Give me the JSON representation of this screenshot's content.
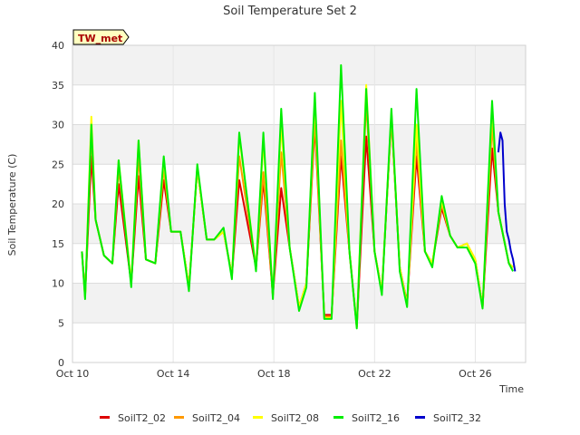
{
  "chart_data": {
    "type": "line",
    "title": "Soil Temperature Set 2",
    "xlabel": "Time",
    "ylabel": "Soil Temperature (C)",
    "annotation": "TW_met",
    "xlim": [
      "2023-10-10",
      "2023-10-28"
    ],
    "ylim": [
      0,
      40
    ],
    "yticks": [
      0,
      5,
      10,
      15,
      20,
      25,
      30,
      35,
      40
    ],
    "xticks": [
      {
        "date": "2023-10-10",
        "label": "Oct 10"
      },
      {
        "date": "2023-10-14",
        "label": "Oct 14"
      },
      {
        "date": "2023-10-18",
        "label": "Oct 18"
      },
      {
        "date": "2023-10-22",
        "label": "Oct 22"
      },
      {
        "date": "2023-10-26",
        "label": "Oct 26"
      }
    ],
    "grid": true,
    "legend_position": "bottom",
    "series": [
      {
        "name": "SoilT2_02",
        "color": "#dd0000",
        "x": [
          "2023-10-10T09:00",
          "2023-10-10T12:00",
          "2023-10-10T18:00",
          "2023-10-10T22:00",
          "2023-10-11T06:00",
          "2023-10-11T14:00",
          "2023-10-11T20:00",
          "2023-10-12T08:00",
          "2023-10-12T15:00",
          "2023-10-12T22:00",
          "2023-10-13T07:00",
          "2023-10-13T15:00",
          "2023-10-13T22:00",
          "2023-10-14T07:00",
          "2023-10-14T15:00",
          "2023-10-14T23:00",
          "2023-10-15T08:00",
          "2023-10-15T15:00",
          "2023-10-16T00:00",
          "2023-10-16T08:00",
          "2023-10-16T15:00",
          "2023-10-17T07:00",
          "2023-10-17T14:00",
          "2023-10-17T23:00",
          "2023-10-18T07:00",
          "2023-10-18T15:00",
          "2023-10-19T00:00",
          "2023-10-19T07:00",
          "2023-10-19T15:00",
          "2023-10-20T00:00",
          "2023-10-20T07:00",
          "2023-10-20T16:00",
          "2023-10-21T00:00",
          "2023-10-21T07:00",
          "2023-10-21T16:00",
          "2023-10-22T00:00",
          "2023-10-22T07:00",
          "2023-10-22T16:00",
          "2023-10-23T00:00",
          "2023-10-23T07:00",
          "2023-10-23T16:00",
          "2023-10-24T00:00",
          "2023-10-24T07:00",
          "2023-10-24T16:00",
          "2023-10-25T00:00",
          "2023-10-25T07:00",
          "2023-10-25T16:00",
          "2023-10-26T00:00",
          "2023-10-26T07:00",
          "2023-10-26T16:00",
          "2023-10-26T22:00",
          "2023-10-27T08:00",
          "2023-10-27T12:00"
        ],
        "y": [
          14,
          8.5,
          26,
          18,
          13.5,
          12.5,
          22.5,
          10,
          23.5,
          13,
          12.5,
          23,
          16.5,
          16.5,
          9.5,
          24.5,
          15.5,
          15.5,
          16.5,
          11,
          23,
          12,
          23,
          8.5,
          22,
          14.5,
          7,
          10,
          30,
          6,
          6,
          26,
          14,
          4.5,
          28.5,
          14,
          9,
          31,
          12,
          7.5,
          26,
          14,
          12.5,
          19.5,
          16,
          14.5,
          15,
          13,
          7,
          27,
          19,
          12.5,
          12
        ]
      },
      {
        "name": "SoilT2_04",
        "color": "#ff9900",
        "x": [
          "2023-10-10T09:00",
          "2023-10-10T12:00",
          "2023-10-10T18:00",
          "2023-10-10T22:00",
          "2023-10-11T06:00",
          "2023-10-11T14:00",
          "2023-10-11T20:00",
          "2023-10-12T08:00",
          "2023-10-12T15:00",
          "2023-10-12T22:00",
          "2023-10-13T07:00",
          "2023-10-13T15:00",
          "2023-10-13T22:00",
          "2023-10-14T07:00",
          "2023-10-14T15:00",
          "2023-10-14T23:00",
          "2023-10-15T08:00",
          "2023-10-15T15:00",
          "2023-10-16T00:00",
          "2023-10-16T08:00",
          "2023-10-16T15:00",
          "2023-10-17T07:00",
          "2023-10-17T14:00",
          "2023-10-17T23:00",
          "2023-10-18T07:00",
          "2023-10-18T15:00",
          "2023-10-19T00:00",
          "2023-10-19T07:00",
          "2023-10-19T15:00",
          "2023-10-20T00:00",
          "2023-10-20T07:00",
          "2023-10-20T16:00",
          "2023-10-21T00:00",
          "2023-10-21T07:00",
          "2023-10-21T16:00",
          "2023-10-22T00:00",
          "2023-10-22T07:00",
          "2023-10-22T16:00",
          "2023-10-23T00:00",
          "2023-10-23T07:00",
          "2023-10-23T16:00",
          "2023-10-24T00:00",
          "2023-10-24T07:00",
          "2023-10-24T16:00",
          "2023-10-25T00:00",
          "2023-10-25T07:00",
          "2023-10-25T16:00",
          "2023-10-26T00:00",
          "2023-10-26T07:00",
          "2023-10-26T16:00",
          "2023-10-26T22:00",
          "2023-10-27T08:00",
          "2023-10-27T12:00"
        ],
        "y": [
          14,
          8.3,
          29,
          18,
          13.5,
          12.5,
          24.5,
          10,
          26,
          13,
          12.5,
          24.5,
          16.5,
          16.5,
          9.5,
          24.5,
          15.5,
          15.5,
          16.5,
          11,
          26,
          12,
          24,
          8.5,
          26.5,
          14.5,
          7,
          10,
          31,
          5.8,
          5.8,
          28,
          14,
          4.5,
          33,
          14,
          9,
          31,
          12,
          7.3,
          28,
          14,
          12.5,
          20,
          16,
          14.5,
          15,
          13,
          7,
          30,
          19,
          12.5,
          12
        ]
      },
      {
        "name": "SoilT2_08",
        "color": "#ffff00",
        "x": [
          "2023-10-10T09:00",
          "2023-10-10T12:00",
          "2023-10-10T18:00",
          "2023-10-10T22:00",
          "2023-10-11T06:00",
          "2023-10-11T14:00",
          "2023-10-11T20:00",
          "2023-10-12T08:00",
          "2023-10-12T15:00",
          "2023-10-12T22:00",
          "2023-10-13T07:00",
          "2023-10-13T15:00",
          "2023-10-13T22:00",
          "2023-10-14T07:00",
          "2023-10-14T15:00",
          "2023-10-14T23:00",
          "2023-10-15T08:00",
          "2023-10-15T15:00",
          "2023-10-16T00:00",
          "2023-10-16T08:00",
          "2023-10-16T15:00",
          "2023-10-17T07:00",
          "2023-10-17T14:00",
          "2023-10-17T23:00",
          "2023-10-18T07:00",
          "2023-10-18T15:00",
          "2023-10-19T00:00",
          "2023-10-19T07:00",
          "2023-10-19T15:00",
          "2023-10-20T00:00",
          "2023-10-20T07:00",
          "2023-10-20T16:00",
          "2023-10-21T00:00",
          "2023-10-21T07:00",
          "2023-10-21T16:00",
          "2023-10-22T00:00",
          "2023-10-22T07:00",
          "2023-10-22T16:00",
          "2023-10-23T00:00",
          "2023-10-23T07:00",
          "2023-10-23T16:00",
          "2023-10-24T00:00",
          "2023-10-24T07:00",
          "2023-10-24T16:00",
          "2023-10-25T00:00",
          "2023-10-25T07:00",
          "2023-10-25T16:00",
          "2023-10-26T00:00",
          "2023-10-26T07:00",
          "2023-10-26T16:00",
          "2023-10-26T22:00",
          "2023-10-27T08:00",
          "2023-10-27T12:00"
        ],
        "y": [
          14,
          8.2,
          31,
          18,
          13.5,
          12.5,
          25.5,
          10,
          28,
          13,
          12.5,
          25.5,
          16.5,
          16.5,
          9.5,
          24.5,
          15.5,
          15.5,
          16.5,
          11,
          28.5,
          12,
          28,
          8.5,
          30,
          14.5,
          7,
          10,
          33,
          5.6,
          5.6,
          33,
          14,
          4.5,
          35,
          14,
          9,
          31.5,
          12,
          7.2,
          30,
          14,
          12.5,
          20.5,
          16,
          14.5,
          15,
          13,
          7,
          32,
          19,
          12.5,
          12
        ]
      },
      {
        "name": "SoilT2_16",
        "color": "#00ee00",
        "x": [
          "2023-10-10T09:00",
          "2023-10-10T12:00",
          "2023-10-10T18:00",
          "2023-10-10T22:00",
          "2023-10-11T06:00",
          "2023-10-11T14:00",
          "2023-10-11T20:00",
          "2023-10-12T08:00",
          "2023-10-12T15:00",
          "2023-10-12T22:00",
          "2023-10-13T07:00",
          "2023-10-13T15:00",
          "2023-10-13T22:00",
          "2023-10-14T07:00",
          "2023-10-14T15:00",
          "2023-10-14T23:00",
          "2023-10-15T08:00",
          "2023-10-15T15:00",
          "2023-10-16T00:00",
          "2023-10-16T08:00",
          "2023-10-16T15:00",
          "2023-10-17T07:00",
          "2023-10-17T14:00",
          "2023-10-17T23:00",
          "2023-10-18T07:00",
          "2023-10-18T15:00",
          "2023-10-19T00:00",
          "2023-10-19T07:00",
          "2023-10-19T15:00",
          "2023-10-20T00:00",
          "2023-10-20T07:00",
          "2023-10-20T16:00",
          "2023-10-21T00:00",
          "2023-10-21T07:00",
          "2023-10-21T16:00",
          "2023-10-22T00:00",
          "2023-10-22T07:00",
          "2023-10-22T16:00",
          "2023-10-23T00:00",
          "2023-10-23T07:00",
          "2023-10-23T16:00",
          "2023-10-24T00:00",
          "2023-10-24T07:00",
          "2023-10-24T16:00",
          "2023-10-25T00:00",
          "2023-10-25T07:00",
          "2023-10-25T16:00",
          "2023-10-26T00:00",
          "2023-10-26T07:00",
          "2023-10-26T16:00",
          "2023-10-26T22:00",
          "2023-10-27T08:00",
          "2023-10-27T12:00"
        ],
        "y": [
          14,
          8,
          30,
          18,
          13.5,
          12.5,
          25.5,
          9.5,
          28,
          13,
          12.5,
          26,
          16.5,
          16.5,
          9,
          25,
          15.5,
          15.5,
          17,
          10.5,
          29,
          11.5,
          29,
          8,
          32,
          14.5,
          6.5,
          9.5,
          34,
          5.5,
          5.5,
          37.5,
          14,
          4.3,
          34.5,
          14,
          8.5,
          32,
          11.5,
          7,
          34.5,
          14,
          12,
          21,
          16,
          14.5,
          14.5,
          12.5,
          6.8,
          33,
          19,
          12.5,
          11.5
        ]
      },
      {
        "name": "SoilT2_32",
        "color": "#0000cc",
        "x": [
          "2023-10-26T22:00",
          "2023-10-27T00:00",
          "2023-10-27T02:00",
          "2023-10-27T04:00",
          "2023-10-27T06:00",
          "2023-10-27T08:00",
          "2023-10-27T10:00",
          "2023-10-27T12:00",
          "2023-10-27T14:00"
        ],
        "y": [
          26.5,
          29,
          28,
          20,
          16.5,
          15.5,
          14,
          13,
          11.5
        ]
      }
    ]
  }
}
